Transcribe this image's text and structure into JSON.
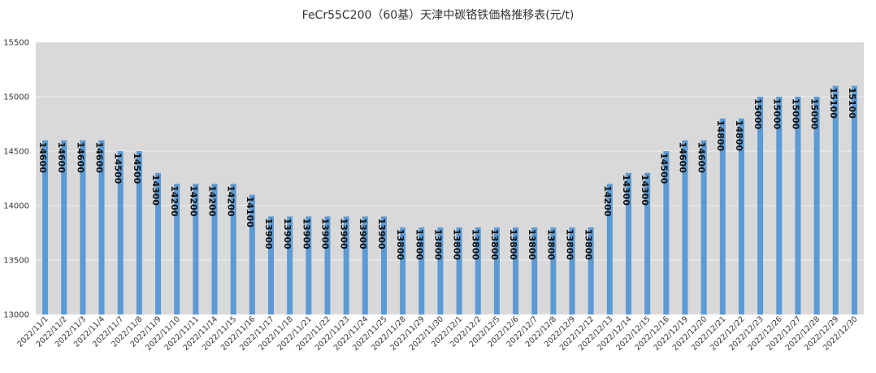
{
  "chart_data": {
    "type": "bar",
    "title": "FeCr55C200（60基）天津中碳铬铁価格推移表(元/t)",
    "xlabel": "",
    "ylabel": "",
    "ylim": [
      13000,
      15500
    ],
    "yticks": [
      13000,
      13500,
      14000,
      14500,
      15000,
      15500
    ],
    "grid": true,
    "bar_color": "#5b9bd5",
    "plot_background": "#d9d9d9",
    "grid_color": "#efefef",
    "categories": [
      "2022/11/1",
      "2022/11/2",
      "2022/11/3",
      "2022/11/4",
      "2022/11/7",
      "2022/11/8",
      "2022/11/9",
      "2022/11/10",
      "2022/11/11",
      "2022/11/14",
      "2022/11/15",
      "2022/11/16",
      "2022/11/17",
      "2022/11/18",
      "2022/11/21",
      "2022/11/22",
      "2022/11/23",
      "2022/11/24",
      "2022/11/25",
      "2022/11/28",
      "2022/11/29",
      "2022/11/30",
      "2022/12/1",
      "2022/12/2",
      "2022/12/5",
      "2022/12/6",
      "2022/12/7",
      "2022/12/8",
      "2022/12/9",
      "2022/12/12",
      "2022/12/13",
      "2022/12/14",
      "2022/12/15",
      "2022/12/16",
      "2022/12/19",
      "2022/12/20",
      "2022/12/21",
      "2022/12/22",
      "2022/12/23",
      "2022/12/26",
      "2022/12/27",
      "2022/12/28",
      "2022/12/29",
      "2022/12/30"
    ],
    "values": [
      14600,
      14600,
      14600,
      14600,
      14500,
      14500,
      14300,
      14200,
      14200,
      14200,
      14200,
      14100,
      13900,
      13900,
      13900,
      13900,
      13900,
      13900,
      13900,
      13800,
      13800,
      13800,
      13800,
      13800,
      13800,
      13800,
      13800,
      13800,
      13800,
      13800,
      14200,
      14300,
      14300,
      14500,
      14600,
      14600,
      14800,
      14800,
      15000,
      15000,
      15000,
      15000,
      15100,
      15100
    ]
  }
}
